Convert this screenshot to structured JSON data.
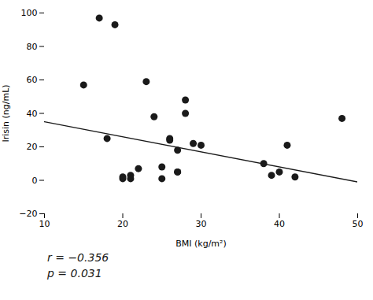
{
  "chart_data": {
    "type": "scatter",
    "x": [
      15,
      17,
      18,
      19,
      20,
      20,
      21,
      21,
      22,
      23,
      24,
      25,
      25,
      26,
      26,
      27,
      27,
      27,
      28,
      28,
      29,
      30,
      38,
      39,
      40,
      41,
      42,
      48
    ],
    "y": [
      57,
      97,
      25,
      93,
      2,
      1,
      3,
      1,
      7,
      59,
      38,
      8,
      1,
      25,
      24,
      5,
      18,
      5,
      48,
      40,
      22,
      21,
      10,
      3,
      5,
      21,
      2,
      37
    ],
    "color": "#1a1a1a",
    "regression": {
      "x": [
        10,
        50
      ],
      "y": [
        35,
        -1
      ],
      "color": "#1a1a1a"
    },
    "xlabel": "BMI (kg/m²)",
    "ylabel": "Irisin (ng/mL)",
    "xlim": [
      10,
      50
    ],
    "ylim": [
      -20,
      100
    ],
    "xticks": [
      10,
      20,
      30,
      40,
      50
    ],
    "yticks": [
      -20,
      0,
      20,
      40,
      60,
      80,
      100
    ],
    "annotations": [
      "r = −0.356",
      "p = 0.031"
    ]
  }
}
